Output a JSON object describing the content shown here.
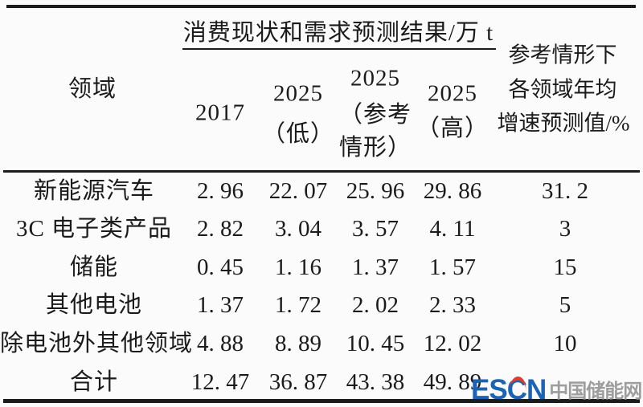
{
  "table": {
    "unit_header": "消费现状和需求预测结果/万 t",
    "domain_header": "领域",
    "columns": {
      "y2017": [
        "2017"
      ],
      "low": [
        "2025",
        "（低）"
      ],
      "ref": [
        "2025",
        "（参考",
        "情形）"
      ],
      "high": [
        "2025",
        "（高）"
      ],
      "growth": [
        "参考情形下",
        "各领域年均",
        "增速预测值/%"
      ]
    },
    "rows": [
      {
        "label": "新能源汽车",
        "y2017": "2. 96",
        "low": "22. 07",
        "ref": "25. 96",
        "high": "29. 86",
        "growth": "31. 2"
      },
      {
        "label": "3C 电子类产品",
        "y2017": "2. 82",
        "low": "3. 04",
        "ref": "3. 57",
        "high": "4. 11",
        "growth": "3"
      },
      {
        "label": "储能",
        "y2017": "0. 45",
        "low": "1. 16",
        "ref": "1. 37",
        "high": "1. 57",
        "growth": "15"
      },
      {
        "label": "其他电池",
        "y2017": "1. 37",
        "low": "1. 72",
        "ref": "2. 02",
        "high": "2. 33",
        "growth": "5"
      },
      {
        "label": "除电池外其他领域",
        "y2017": "4. 88",
        "low": "8. 89",
        "ref": "10. 45",
        "high": "12. 02",
        "growth": "10"
      },
      {
        "label": "合计",
        "y2017": "12. 47",
        "low": "36. 87",
        "ref": "43. 38",
        "high": "49. 89",
        "growth": ""
      }
    ]
  },
  "watermark": {
    "logo_text": "ESCN",
    "site_text": "中国储能网",
    "logo_color": "#1b63b5",
    "site_color": "#9d9d9d",
    "accent_color": "#e23b2e"
  },
  "colors": {
    "background": "#fbfbfb",
    "ink": "#1b1b1b",
    "rule": "#1c1c1c"
  }
}
